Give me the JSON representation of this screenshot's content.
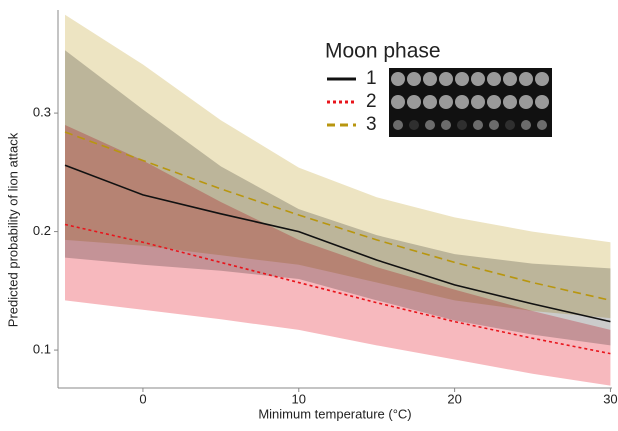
{
  "chart_data": {
    "type": "line",
    "x_label": "Minimum temperature (°C)",
    "y_label": "Predicted probability of lion attack",
    "legend_title": "Moon phase",
    "x": [
      -5,
      0,
      5,
      10,
      15,
      20,
      25,
      30
    ],
    "series": [
      {
        "name": "3",
        "color": "#b8960f",
        "band_color": "#e6d8a8",
        "dash": "dashed",
        "values": [
          0.284,
          0.26,
          0.236,
          0.214,
          0.193,
          0.174,
          0.157,
          0.142
        ],
        "upper": [
          0.383,
          0.341,
          0.294,
          0.254,
          0.229,
          0.212,
          0.2,
          0.191
        ],
        "lower": [
          0.193,
          0.188,
          0.18,
          0.172,
          0.157,
          0.142,
          0.133,
          0.127
        ]
      },
      {
        "name": "1",
        "color": "#111111",
        "band_color": "#b5b5b5",
        "dash": "solid",
        "values": [
          0.256,
          0.231,
          0.215,
          0.2,
          0.176,
          0.155,
          0.139,
          0.124
        ],
        "upper": [
          0.353,
          0.303,
          0.255,
          0.219,
          0.197,
          0.181,
          0.173,
          0.169
        ],
        "lower": [
          0.178,
          0.172,
          0.167,
          0.16,
          0.142,
          0.125,
          0.113,
          0.104
        ]
      },
      {
        "name": "2",
        "color": "#e8141b",
        "band_color": "#f49ba2",
        "dash": "dotted",
        "values": [
          0.206,
          0.191,
          0.174,
          0.157,
          0.14,
          0.124,
          0.11,
          0.097
        ],
        "upper": [
          0.29,
          0.26,
          0.225,
          0.193,
          0.17,
          0.151,
          0.133,
          0.117
        ],
        "lower": [
          0.142,
          0.134,
          0.126,
          0.117,
          0.104,
          0.092,
          0.08,
          0.07
        ]
      }
    ],
    "legend_order": [
      1,
      2,
      0
    ],
    "xlim": [
      -5.45,
      30.1
    ],
    "xticks": [
      0,
      10,
      20,
      30
    ],
    "ylim": [
      0.068,
      0.387
    ],
    "yticks": [
      0.1,
      0.2,
      0.3
    ]
  }
}
